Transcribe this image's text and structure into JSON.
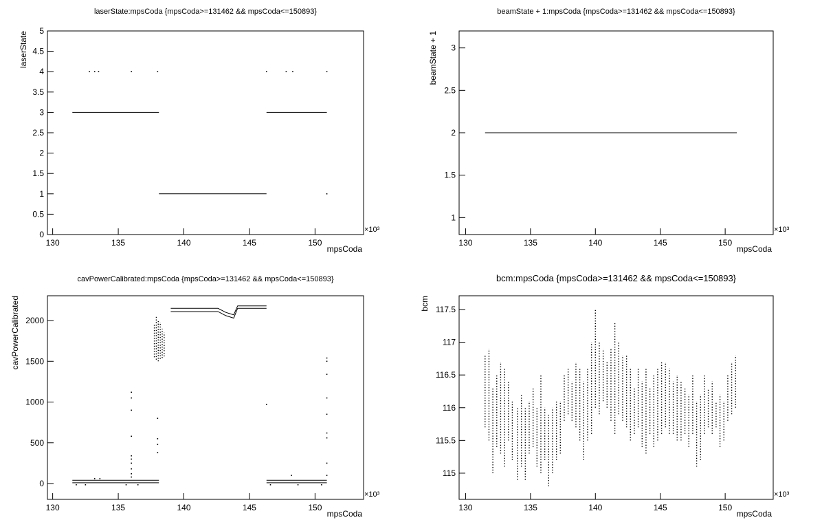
{
  "chart_data": [
    {
      "type": "scatter",
      "title": "laserState:mpsCoda {mpsCoda>=131462 && mpsCoda<=150893}",
      "x_label": "mpsCoda",
      "y_label": "laserState",
      "x_scale_label": "×10³",
      "xlim": [
        129.6,
        153.7
      ],
      "xticks": [
        130,
        135,
        140,
        145,
        150
      ],
      "ylim": [
        0,
        5
      ],
      "yticks": [
        0,
        0.5,
        1,
        1.5,
        2,
        2.5,
        3,
        3.5,
        4,
        4.5,
        5
      ],
      "series": [
        {
          "style": "line",
          "color": "#000000",
          "x": [
            131.5,
            138.1,
            null,
            138.1,
            146.3,
            null,
            146.3,
            150.9
          ],
          "values": [
            3,
            3,
            null,
            1,
            1,
            null,
            3,
            3
          ]
        },
        {
          "style": "dots",
          "color": "#000000",
          "x": [
            132.8,
            133.2,
            133.5,
            136.0,
            138.0,
            146.3,
            147.8,
            148.3,
            150.9,
            150.9
          ],
          "values": [
            4,
            4,
            4,
            4,
            4,
            4,
            4,
            4,
            4,
            1
          ]
        }
      ]
    },
    {
      "type": "scatter",
      "title": "beamState + 1:mpsCoda {mpsCoda>=131462 && mpsCoda<=150893}",
      "x_label": "mpsCoda",
      "y_label": "beamState + 1",
      "x_scale_label": "×10³",
      "xlim": [
        129.5,
        153.7
      ],
      "xticks": [
        130,
        135,
        140,
        145,
        150
      ],
      "ylim": [
        0.8,
        3.2
      ],
      "yticks": [
        1,
        1.5,
        2,
        2.5,
        3
      ],
      "series": [
        {
          "style": "line",
          "color": "#000000",
          "x": [
            131.5,
            150.9
          ],
          "values": [
            2,
            2
          ]
        }
      ]
    },
    {
      "type": "scatter",
      "title": "cavPowerCalibrated:mpsCoda {mpsCoda>=131462 && mpsCoda<=150893}",
      "x_label": "mpsCoda",
      "y_label": "cavPowerCalibrated",
      "x_scale_label": "×10³",
      "xlim": [
        129.6,
        153.7
      ],
      "xticks": [
        130,
        135,
        140,
        145,
        150
      ],
      "ylim": [
        -194,
        2304
      ],
      "yticks": [
        0,
        500,
        1000,
        1500,
        2000
      ],
      "series": [
        {
          "style": "line",
          "color": "#000000",
          "x": [
            131.5,
            138.1,
            null,
            131.5,
            138.1,
            null,
            146.3,
            150.9,
            null,
            146.3,
            150.9,
            null,
            139.0,
            142.6,
            143.2,
            143.8,
            144.1,
            146.3,
            null,
            139.0,
            142.6,
            143.2,
            143.8,
            144.1,
            146.3
          ],
          "values": [
            40,
            40,
            null,
            10,
            10,
            null,
            40,
            40,
            null,
            10,
            10,
            null,
            2150,
            2150,
            2100,
            2070,
            2180,
            2180,
            null,
            2110,
            2110,
            2060,
            2030,
            2150,
            2150
          ]
        },
        {
          "style": "columns",
          "color": "#000000",
          "x": [
            137.75,
            137.9,
            138.05,
            138.2,
            138.35,
            138.5
          ],
          "low": [
            1550,
            1520,
            1500,
            1530,
            1540,
            1560
          ],
          "high": [
            1950,
            2050,
            2000,
            1980,
            1900,
            1850
          ]
        },
        {
          "style": "dots",
          "color": "#000000",
          "x": [
            136.0,
            136.0,
            136.0,
            136.0,
            136.0,
            136.0,
            136.0,
            136.0,
            136.0,
            136.0,
            138.0,
            138.0,
            138.0,
            138.0,
            146.3,
            150.9,
            150.9,
            150.9,
            150.9,
            150.9,
            150.9,
            150.9,
            150.9,
            150.9,
            133.2,
            133.6,
            148.2,
            131.8,
            132.5,
            135.6,
            136.5,
            146.6,
            148.7,
            150.5
          ],
          "values": [
            1120,
            1050,
            900,
            580,
            340,
            300,
            250,
            180,
            120,
            80,
            800,
            550,
            480,
            380,
            970,
            1540,
            1500,
            1340,
            1050,
            850,
            620,
            560,
            250,
            100,
            60,
            60,
            100,
            -15,
            -15,
            -15,
            -15,
            -15,
            -15,
            -15
          ]
        }
      ]
    },
    {
      "type": "scatter",
      "title": "bcm:mpsCoda {mpsCoda>=131462 && mpsCoda<=150893}",
      "x_label": "mpsCoda",
      "y_label": "bcm",
      "x_scale_label": "×10³",
      "xlim": [
        129.5,
        153.7
      ],
      "xticks": [
        130,
        135,
        140,
        145,
        150
      ],
      "ylim": [
        114.6,
        117.71
      ],
      "yticks": [
        115,
        115.5,
        116,
        116.5,
        117,
        117.5
      ],
      "series": [
        {
          "style": "columns",
          "color": "#000000",
          "x": [
            131.5,
            131.8,
            132.1,
            132.4,
            132.7,
            133.0,
            133.3,
            133.6,
            134.0,
            134.3,
            134.6,
            134.9,
            135.2,
            135.5,
            135.8,
            136.1,
            136.4,
            136.7,
            137.0,
            137.3,
            137.6,
            137.9,
            138.2,
            138.5,
            138.8,
            139.1,
            139.4,
            139.7,
            140.0,
            140.3,
            140.6,
            140.9,
            141.2,
            141.5,
            141.8,
            142.1,
            142.4,
            142.7,
            143.0,
            143.3,
            143.6,
            143.9,
            144.2,
            144.5,
            144.8,
            145.1,
            145.4,
            145.7,
            146.0,
            146.3,
            146.6,
            146.9,
            147.2,
            147.5,
            147.8,
            148.1,
            148.4,
            148.7,
            149.0,
            149.3,
            149.6,
            149.9,
            150.2,
            150.5,
            150.8
          ],
          "low": [
            115.7,
            115.5,
            115.0,
            115.4,
            115.3,
            115.1,
            115.5,
            115.2,
            114.9,
            115.1,
            114.9,
            115.3,
            115.4,
            115.1,
            115.0,
            115.2,
            114.8,
            115.0,
            115.2,
            115.3,
            115.8,
            115.9,
            115.8,
            115.7,
            115.5,
            115.2,
            115.5,
            115.6,
            116.0,
            115.9,
            116.1,
            116.0,
            115.8,
            115.6,
            115.9,
            115.8,
            115.7,
            115.5,
            115.6,
            115.7,
            115.4,
            115.3,
            115.6,
            115.4,
            115.5,
            115.6,
            115.7,
            115.6,
            115.6,
            115.5,
            115.5,
            115.6,
            115.4,
            115.6,
            115.1,
            115.2,
            115.6,
            115.7,
            115.6,
            115.7,
            115.4,
            115.5,
            115.8,
            115.9,
            116.0
          ],
          "high": [
            116.8,
            116.9,
            116.3,
            116.5,
            116.7,
            116.6,
            116.4,
            116.1,
            116.0,
            116.2,
            116.0,
            116.1,
            116.3,
            116.0,
            116.5,
            116.0,
            115.9,
            116.0,
            116.1,
            116.1,
            116.5,
            116.6,
            116.4,
            116.7,
            116.6,
            116.4,
            116.6,
            117.0,
            117.5,
            117.0,
            116.9,
            116.7,
            116.9,
            117.3,
            117.0,
            116.8,
            116.8,
            116.6,
            116.3,
            116.6,
            116.4,
            116.6,
            116.3,
            116.5,
            116.6,
            116.7,
            116.7,
            116.6,
            116.4,
            116.5,
            116.4,
            116.3,
            116.2,
            116.5,
            116.1,
            116.2,
            116.5,
            116.3,
            116.4,
            116.1,
            116.2,
            116.1,
            116.5,
            116.7,
            116.8
          ]
        }
      ]
    }
  ]
}
